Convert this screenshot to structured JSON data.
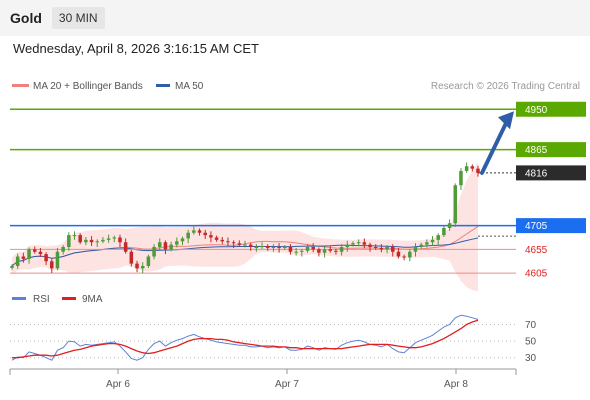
{
  "header": {
    "symbol": "Gold",
    "timeframe": "30 MIN",
    "datetime": "Wednesday, April 8, 2026 3:16:15 AM CET"
  },
  "legend": {
    "ma20_label": "MA 20 + Bollinger Bands",
    "ma50_label": "MA 50",
    "credit": "Research © 2026 Trading Central"
  },
  "rsi_legend": {
    "rsi_label": "RSI",
    "ma_label": "9MA"
  },
  "colors": {
    "green": "#5aa800",
    "blue": "#1c6ef0",
    "red": "#e02020",
    "dark": "#2b2b2b",
    "candle_up": "#4f9a3a",
    "candle_down": "#c62828",
    "band_fill": "#fde0de",
    "ma20": "#f08080",
    "ma50": "#2f5ea8",
    "rsi": "#5b82d6",
    "rsi_ma": "#e02020",
    "arrow": "#2f5ea8"
  },
  "chart_data": {
    "type": "candlestick",
    "symbol": "Gold",
    "interval": "30 MIN",
    "x_ticks": [
      "Apr 6",
      "Apr 7",
      "Apr 8"
    ],
    "levels": [
      {
        "value": 4950,
        "label": "4950",
        "role": "target",
        "style": "green-box"
      },
      {
        "value": 4865,
        "label": "4865",
        "role": "resistance",
        "style": "green-box"
      },
      {
        "value": 4816,
        "label": "4816",
        "role": "last-price",
        "style": "dark-box"
      },
      {
        "value": 4705,
        "label": "4705",
        "role": "pivot",
        "style": "blue-box"
      },
      {
        "value": 4655,
        "label": "4655",
        "role": "support",
        "style": "red-text"
      },
      {
        "value": 4605,
        "label": "4605",
        "role": "support",
        "style": "red-text"
      }
    ],
    "price_range": [
      4580,
      4980
    ],
    "close_approx": [
      4620,
      4640,
      4635,
      4655,
      4650,
      4645,
      4630,
      4615,
      4650,
      4660,
      4685,
      4685,
      4670,
      4675,
      4670,
      4672,
      4675,
      4678,
      4680,
      4670,
      4650,
      4625,
      4615,
      4620,
      4640,
      4660,
      4670,
      4655,
      4665,
      4672,
      4678,
      4690,
      4695,
      4690,
      4685,
      4680,
      4675,
      4672,
      4670,
      4668,
      4665,
      4665,
      4660,
      4660,
      4662,
      4658,
      4660,
      4658,
      4660,
      4650,
      4650,
      4652,
      4660,
      4655,
      4648,
      4655,
      4652,
      4650,
      4660,
      4665,
      4668,
      4670,
      4665,
      4660,
      4658,
      4655,
      4660,
      4650,
      4640,
      4638,
      4650,
      4660,
      4665,
      4670,
      4675,
      4685,
      4700,
      4710,
      4790,
      4820,
      4830,
      4825,
      4816
    ],
    "rsi": {
      "levels": [
        70,
        50,
        30
      ],
      "ylim": [
        20,
        85
      ],
      "values": [
        27,
        31,
        30,
        37,
        35,
        33,
        30,
        27,
        39,
        42,
        50,
        49,
        44,
        46,
        45,
        46,
        47,
        48,
        49,
        44,
        37,
        29,
        27,
        30,
        40,
        47,
        50,
        44,
        48,
        51,
        53,
        56,
        58,
        55,
        53,
        51,
        49,
        48,
        47,
        46,
        45,
        45,
        43,
        43,
        44,
        42,
        43,
        42,
        43,
        39,
        39,
        40,
        44,
        42,
        39,
        42,
        41,
        40,
        45,
        48,
        50,
        51,
        49,
        46,
        45,
        43,
        46,
        41,
        37,
        36,
        42,
        48,
        51,
        54,
        57,
        62,
        67,
        70,
        78,
        81,
        80,
        78,
        76
      ],
      "ma9": [
        30,
        30,
        31,
        32,
        33,
        33,
        33,
        32,
        33,
        35,
        37,
        39,
        40,
        42,
        44,
        45,
        46,
        47,
        47,
        46,
        44,
        41,
        38,
        36,
        35,
        36,
        38,
        40,
        42,
        44,
        47,
        50,
        52,
        53,
        53,
        53,
        52,
        52,
        51,
        49,
        48,
        47,
        46,
        45,
        44,
        44,
        44,
        43,
        43,
        42,
        42,
        41,
        41,
        41,
        41,
        41,
        41,
        41,
        41,
        42,
        43,
        44,
        45,
        46,
        46,
        46,
        46,
        45,
        44,
        43,
        42,
        42,
        43,
        45,
        47,
        50,
        53,
        57,
        61,
        65,
        70,
        73,
        75
      ]
    }
  }
}
